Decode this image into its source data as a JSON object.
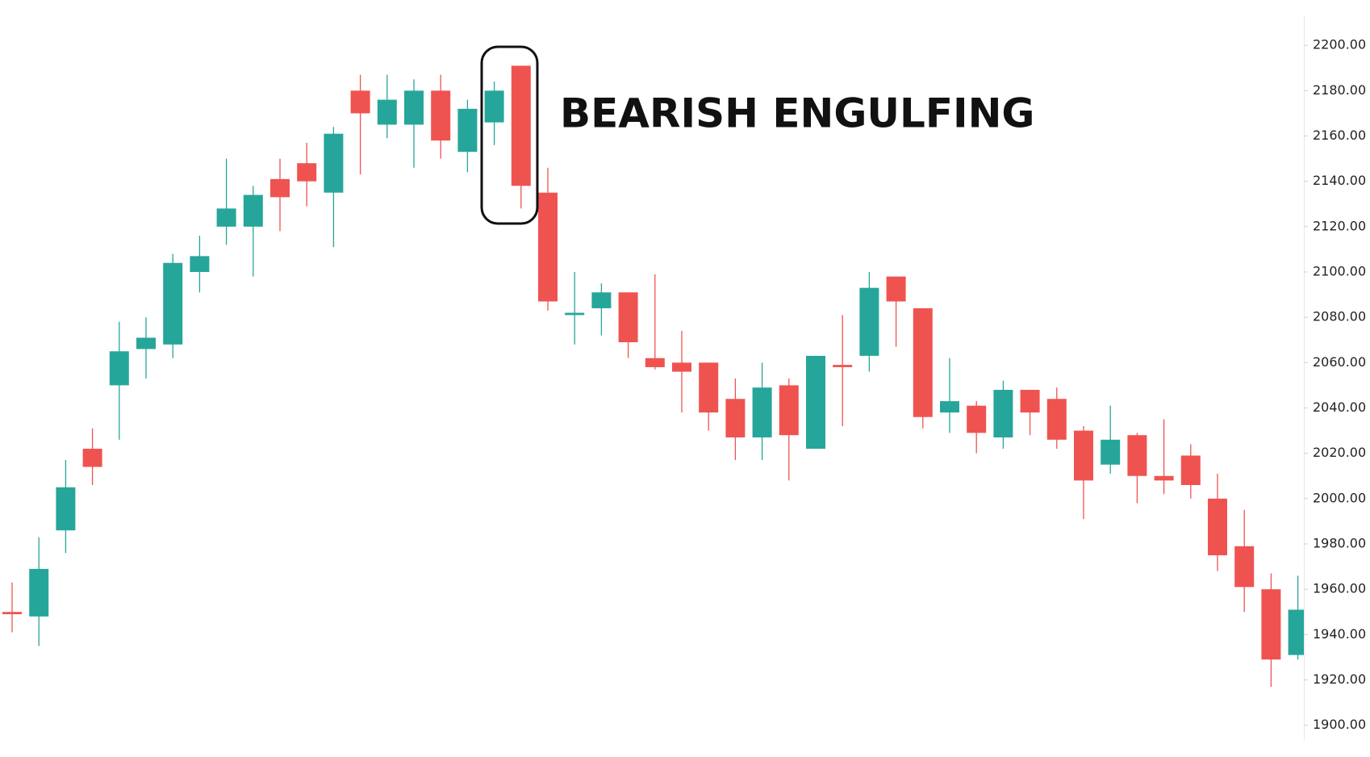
{
  "chart_data": {
    "type": "candlestick",
    "annotation": "BEARISH ENGULFING",
    "up_color": "#26a69a",
    "down_color": "#ef5350",
    "open": [
      1950,
      1948,
      1986,
      2022,
      2050,
      2066,
      2068,
      2100,
      2120,
      2120,
      2141,
      2148,
      2135,
      2180,
      2165,
      2165,
      2180,
      2153,
      2166,
      2191,
      2135,
      2081,
      2084,
      2091,
      2062,
      2060,
      2060,
      2044,
      2027,
      2050,
      2022,
      2059,
      2063,
      2098,
      2084,
      2038,
      2041,
      2027,
      2048,
      2044,
      2030,
      2015,
      2028,
      2010,
      2019,
      2000,
      1979,
      1960,
      1931
    ],
    "high": [
      1963,
      1983,
      2017,
      2031,
      2078,
      2080,
      2108,
      2116,
      2150,
      2138,
      2150,
      2157,
      2164,
      2187,
      2187,
      2185,
      2187,
      2176,
      2184,
      2191,
      2146,
      2100,
      2095,
      2091,
      2099,
      2074,
      2060,
      2053,
      2060,
      2053,
      2063,
      2081,
      2100,
      2098,
      2084,
      2062,
      2043,
      2052,
      2048,
      2049,
      2032,
      2041,
      2029,
      2035,
      2024,
      2011,
      1995,
      1967,
      1966
    ],
    "low": [
      1941,
      1935,
      1976,
      2006,
      2026,
      2053,
      2062,
      2091,
      2112,
      2098,
      2118,
      2129,
      2111,
      2143,
      2159,
      2146,
      2150,
      2144,
      2156,
      2128,
      2083,
      2068,
      2072,
      2062,
      2057,
      2038,
      2030,
      2017,
      2017,
      2008,
      2022,
      2032,
      2056,
      2067,
      2031,
      2029,
      2020,
      2022,
      2028,
      2022,
      1991,
      2011,
      1998,
      2002,
      2000,
      1968,
      1950,
      1917,
      1929
    ],
    "close": [
      1949,
      1969,
      2005,
      2014,
      2065,
      2071,
      2104,
      2107,
      2128,
      2134,
      2133,
      2140,
      2161,
      2170,
      2176,
      2180,
      2158,
      2172,
      2180,
      2138,
      2087,
      2082,
      2091,
      2069,
      2058,
      2056,
      2038,
      2027,
      2049,
      2028,
      2063,
      2058,
      2093,
      2087,
      2036,
      2043,
      2029,
      2048,
      2038,
      2026,
      2008,
      2026,
      2010,
      2008,
      2006,
      1975,
      1961,
      1929,
      1951
    ],
    "ylim": [
      1886,
      2220
    ],
    "yticks": [
      {
        "value": 1900,
        "label": "1900.00"
      },
      {
        "value": 1920,
        "label": "1920.00"
      },
      {
        "value": 1940,
        "label": "1940.00"
      },
      {
        "value": 1960,
        "label": "1960.00"
      },
      {
        "value": 1980,
        "label": "1980.00"
      },
      {
        "value": 2000,
        "label": "2000.00"
      },
      {
        "value": 2020,
        "label": "2020.00"
      },
      {
        "value": 2040,
        "label": "2040.00"
      },
      {
        "value": 2060,
        "label": "2060.00"
      },
      {
        "value": 2080,
        "label": "2080.00"
      },
      {
        "value": 2100,
        "label": "2100.00"
      },
      {
        "value": 2120,
        "label": "2120.00"
      },
      {
        "value": 2140,
        "label": "2140.00"
      },
      {
        "value": 2160,
        "label": "2160.00"
      },
      {
        "value": 2180,
        "label": "2180.00"
      },
      {
        "value": 2200,
        "label": "2200.00"
      }
    ],
    "y_axis_side": "right"
  }
}
